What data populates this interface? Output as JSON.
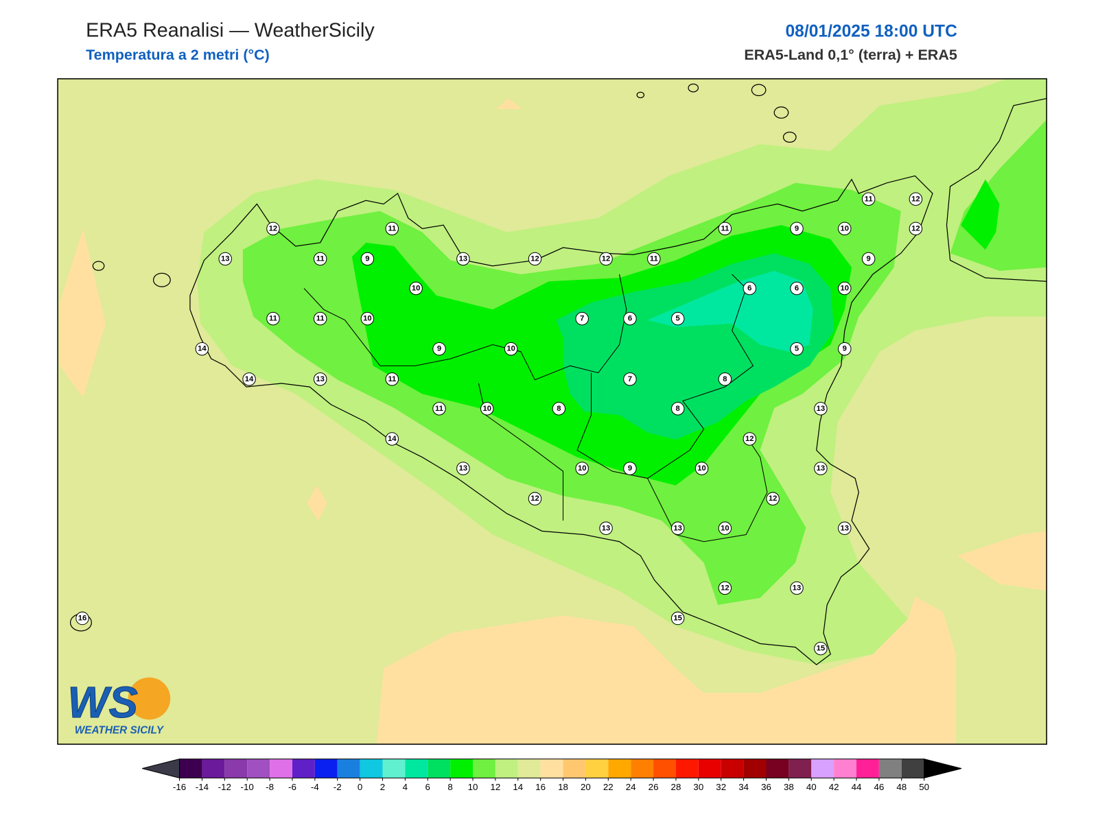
{
  "header": {
    "title": "ERA5 Reanalisi — WeatherSicily",
    "subtitle": "Temperatura a 2 metri (°C)",
    "datetime": "08/01/2025 18:00 UTC",
    "source": "ERA5-Land 0,1° (terra) + ERA5"
  },
  "map": {
    "stations": [
      12,
      11,
      13,
      11,
      9,
      13,
      12,
      12,
      11,
      11,
      9,
      10,
      11,
      12,
      12,
      9,
      10,
      6,
      6,
      10,
      11,
      11,
      10,
      7,
      6,
      5,
      14,
      9,
      10,
      5,
      9,
      14,
      13,
      11,
      7,
      8,
      11,
      10,
      8,
      8,
      13,
      14,
      12,
      13,
      10,
      9,
      10,
      13,
      12,
      12,
      13,
      13,
      10,
      13,
      12,
      13,
      15,
      15,
      16
    ]
  },
  "colorbar": {
    "ticks": [
      -16,
      -14,
      -12,
      -10,
      -8,
      -6,
      -4,
      -2,
      0,
      2,
      4,
      6,
      8,
      10,
      12,
      14,
      16,
      18,
      20,
      22,
      24,
      26,
      28,
      30,
      32,
      34,
      36,
      38,
      40,
      42,
      44,
      46,
      48,
      50
    ],
    "colors": [
      "#3d0050",
      "#6a1a9a",
      "#8a3aaa",
      "#a050c0",
      "#e070e8",
      "#6020c8",
      "#0a20f0",
      "#1a80e0",
      "#10c8e0",
      "#60f0d0",
      "#00e8a0",
      "#00e060",
      "#00f000",
      "#70f040",
      "#c0f080",
      "#e0ea98",
      "#ffe0a0",
      "#ffc870",
      "#ffd040",
      "#ffa800",
      "#ff8000",
      "#ff5000",
      "#ff1800",
      "#e80000",
      "#c80000",
      "#a00000",
      "#780020",
      "#802050",
      "#d8a0ff",
      "#ff80d0",
      "#ff2098",
      "#808080",
      "#404040"
    ],
    "under_color": "#3a3a48",
    "over_color": "#000000"
  },
  "logo": {
    "mark": "WS",
    "name": "WEATHER SICILY"
  }
}
